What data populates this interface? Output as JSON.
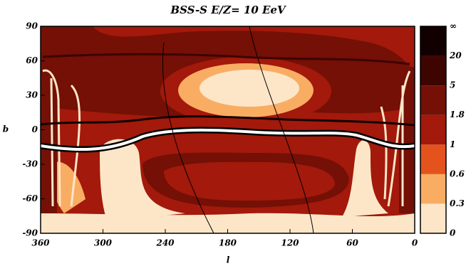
{
  "chart_data": {
    "type": "contour-map",
    "title": "BSS-S  E/Z= 10 EeV",
    "x_label": "l",
    "y_label": "b",
    "xlim": [
      360,
      0
    ],
    "xticks": [
      360,
      300,
      240,
      180,
      120,
      60,
      0
    ],
    "ylim": [
      -90,
      90
    ],
    "yticks": [
      -90,
      -60,
      -30,
      0,
      30,
      60,
      90
    ],
    "colorbar_labels": [
      "0",
      "0.3",
      "0.6",
      "1",
      "1.8",
      "5",
      "20",
      "∞"
    ],
    "colorbar_colors": [
      "#fde6c8",
      "#f9ad63",
      "#e5531d",
      "#a3190b",
      "#741006",
      "#3d0400",
      "#120000"
    ]
  }
}
